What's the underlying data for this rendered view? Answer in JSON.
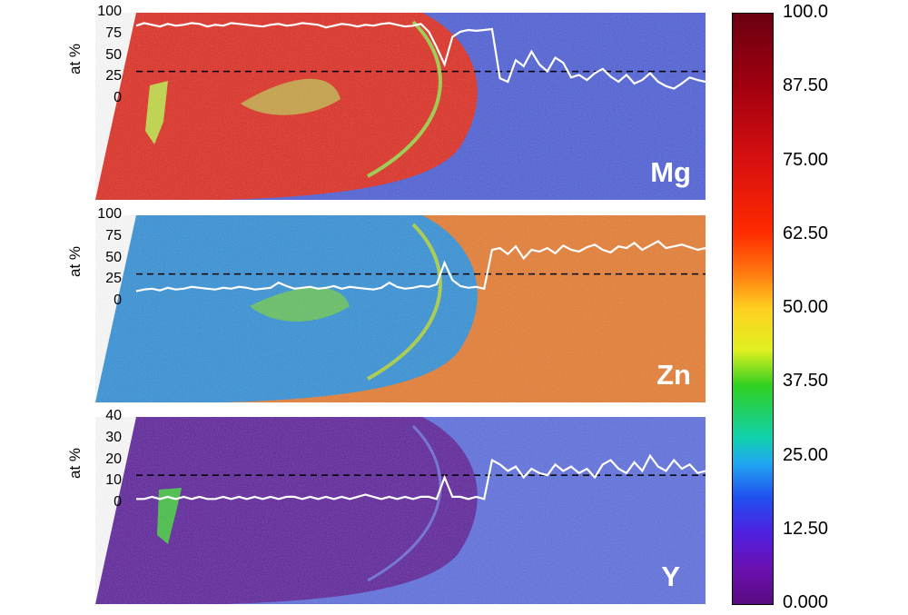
{
  "panels": [
    {
      "element": "Mg",
      "axis_label": "at %",
      "ticks": [
        "100",
        "75",
        "50",
        "25",
        "0"
      ],
      "tick_values": [
        100,
        75,
        50,
        25,
        0
      ],
      "dashed_line_value": 32,
      "profile": [
        85,
        88,
        86,
        84,
        87,
        85,
        86,
        88,
        87,
        84,
        86,
        85,
        88,
        87,
        86,
        85,
        84,
        86,
        87,
        85,
        86,
        88,
        87,
        86,
        83,
        85,
        87,
        86,
        84,
        86,
        85,
        87,
        88,
        86,
        84,
        85,
        87,
        78,
        60,
        40,
        72,
        78,
        80,
        79,
        80,
        81,
        24,
        20,
        45,
        38,
        55,
        40,
        32,
        48,
        42,
        25,
        28,
        22,
        30,
        35,
        26,
        20,
        28,
        18,
        22,
        30,
        20,
        15,
        12,
        18,
        25,
        22,
        20
      ],
      "colors": {
        "inner": "#e0281c",
        "outer": "#4a5cd8"
      }
    },
    {
      "element": "Zn",
      "axis_label": "at %",
      "ticks": [
        "100",
        "75",
        "50",
        "25",
        "0"
      ],
      "tick_values": [
        100,
        75,
        50,
        25,
        0
      ],
      "dashed_line_value": 32,
      "profile": [
        12,
        14,
        15,
        13,
        16,
        14,
        15,
        17,
        16,
        15,
        14,
        16,
        15,
        17,
        16,
        14,
        15,
        16,
        22,
        18,
        15,
        16,
        17,
        15,
        16,
        18,
        15,
        17,
        16,
        15,
        14,
        16,
        22,
        17,
        15,
        16,
        18,
        17,
        20,
        45,
        25,
        18,
        16,
        17,
        15,
        60,
        62,
        55,
        64,
        50,
        60,
        58,
        62,
        56,
        65,
        60,
        58,
        63,
        66,
        60,
        57,
        64,
        62,
        68,
        60,
        65,
        70,
        62,
        64,
        66,
        63,
        60,
        62
      ],
      "colors": {
        "inner": "#2f8fd8",
        "outer": "#e87a2c"
      }
    },
    {
      "element": "Y",
      "axis_label": "at %",
      "ticks": [
        "40",
        "30",
        "20",
        "10",
        "0"
      ],
      "tick_values": [
        40,
        30,
        20,
        10,
        0
      ],
      "dashed_line_value": 13,
      "profile": [
        2,
        2,
        3,
        2,
        3,
        2,
        3,
        2,
        3,
        2,
        2,
        3,
        2,
        3,
        2,
        3,
        2,
        3,
        2,
        3,
        3,
        2,
        3,
        2,
        3,
        2,
        3,
        2,
        3,
        4,
        3,
        2,
        3,
        2,
        3,
        2,
        3,
        3,
        2,
        12,
        3,
        3,
        2,
        3,
        2,
        20,
        18,
        15,
        17,
        12,
        16,
        14,
        13,
        18,
        15,
        17,
        14,
        16,
        12,
        18,
        20,
        16,
        14,
        19,
        15,
        22,
        17,
        15,
        20,
        16,
        18,
        14,
        15
      ],
      "colors": {
        "inner": "#5a1e9a",
        "outer": "#5a6ce0"
      }
    }
  ],
  "colorbar": {
    "labels": [
      "100.0",
      "87.50",
      "75.00",
      "62.50",
      "50.00",
      "37.50",
      "25.00",
      "12.50",
      "0.000"
    ],
    "values": [
      100,
      87.5,
      75,
      62.5,
      50,
      37.5,
      25,
      12.5,
      0
    ],
    "stops": [
      "#6a0010",
      "#a00010",
      "#d81010",
      "#ff2a00",
      "#ff7a10",
      "#ffd020",
      "#e0f020",
      "#30d020",
      "#10d0b0",
      "#20a8f0",
      "#2050f0",
      "#5020e0",
      "#6a10b0",
      "#5a0a80"
    ]
  }
}
